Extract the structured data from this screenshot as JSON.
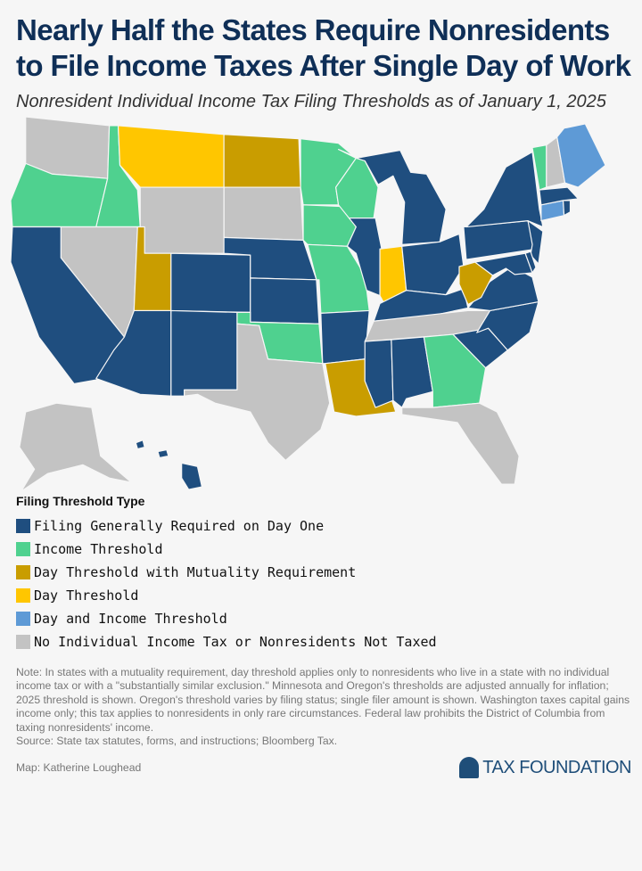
{
  "header": {
    "title": "Nearly Half the States Require Nonresidents to File Income Taxes After Single Day of Work",
    "subtitle": "Nonresident Individual Income Tax Filing Thresholds as of January 1, 2025"
  },
  "legend": {
    "title": "Filing Threshold Type",
    "items": [
      {
        "key": "day_one",
        "label": "Filing Generally Required on Day One",
        "color": "#1f4e7f"
      },
      {
        "key": "income",
        "label": "Income Threshold",
        "color": "#4fd18f"
      },
      {
        "key": "mutuality",
        "label": "Day Threshold with Mutuality Requirement",
        "color": "#c99d00"
      },
      {
        "key": "day",
        "label": "Day Threshold",
        "color": "#ffc600"
      },
      {
        "key": "day_income",
        "label": "Day and Income Threshold",
        "color": "#5e9ad6"
      },
      {
        "key": "none",
        "label": "No Individual Income Tax or Nonresidents Not Taxed",
        "color": "#c3c3c3"
      }
    ]
  },
  "states": {
    "WA": "none",
    "OR": "income",
    "ID": "income",
    "MT": "day",
    "ND": "mutuality",
    "SD": "none",
    "WY": "none",
    "NV": "none",
    "CA": "day_one",
    "UT": "mutuality",
    "CO": "day_one",
    "AZ": "day_one",
    "NM": "day_one",
    "NE": "day_one",
    "KS": "day_one",
    "OK": "income",
    "TX": "none",
    "MN": "income",
    "IA": "income",
    "MO": "income",
    "AR": "day_one",
    "LA": "mutuality",
    "WI": "income",
    "IL": "day_one",
    "MI": "day_one",
    "IN": "day",
    "OH": "day_one",
    "KY": "day_one",
    "TN": "none",
    "MS": "day_one",
    "AL": "day_one",
    "GA": "income",
    "FL": "none",
    "SC": "day_one",
    "NC": "day_one",
    "VA": "day_one",
    "WV": "mutuality",
    "PA": "day_one",
    "NY": "day_one",
    "NJ": "day_one",
    "MD": "day_one",
    "DE": "day_one",
    "CT": "day_income",
    "RI": "day_one",
    "MA": "day_one",
    "VT": "income",
    "NH": "none",
    "ME": "day_income",
    "AK": "none",
    "HI": "day_one"
  },
  "footer": {
    "note": "Note: In states with a mutuality requirement, day threshold applies only to nonresidents who live in a state with no individual income tax or with a \"substantially similar exclusion.\" Minnesota and Oregon's thresholds are adjusted annually for inflation; 2025 threshold is shown. Oregon's threshold varies by filing status; single filer amount is shown. Washington taxes capital gains income only; this tax applies to nonresidents in only rare circumstances. Federal law prohibits the District of Columbia from taxing nonresidents' income.",
    "source": "Source: State tax statutes, forms, and instructions; Bloomberg Tax.",
    "byline": "Map: Katherine Loughead",
    "logo": "TAX FOUNDATION"
  }
}
